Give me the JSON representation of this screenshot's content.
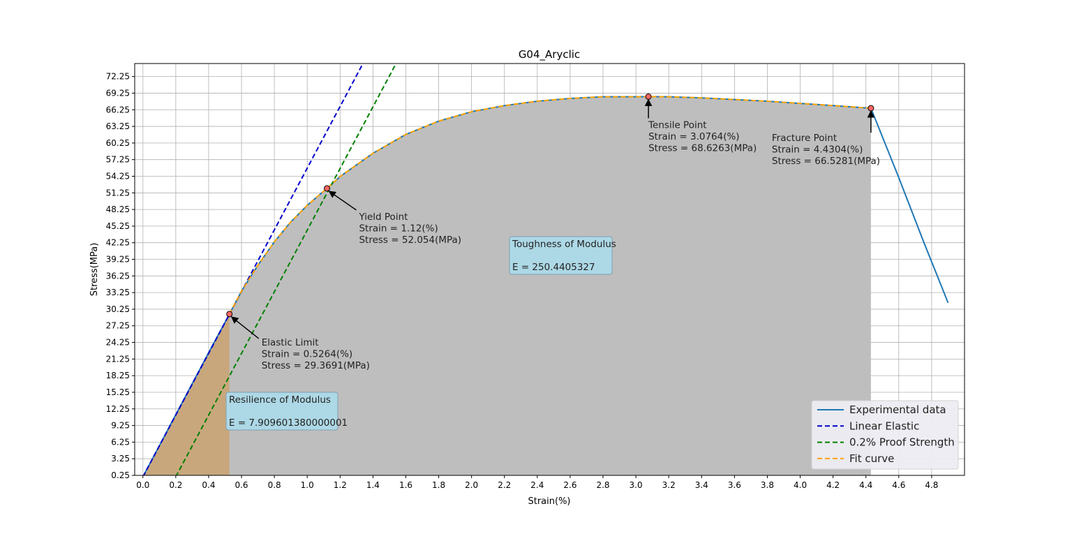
{
  "chart_data": {
    "type": "line",
    "title": "G04_Aryclic",
    "xlabel": "Strain(%)",
    "ylabel": "Stress(MPa)",
    "xlim": [
      -0.05,
      5.0
    ],
    "ylim": [
      0.25,
      74.6
    ],
    "x_ticks": [
      0.0,
      0.2,
      0.4,
      0.6,
      0.8,
      1.0,
      1.2,
      1.4,
      1.6,
      1.8,
      2.0,
      2.2,
      2.4,
      2.6,
      2.8,
      3.0,
      3.2,
      3.4,
      3.6,
      3.8,
      4.0,
      4.2,
      4.4,
      4.6,
      4.8
    ],
    "x_tick_labels": [
      "0.0",
      "0.2",
      "0.4",
      "0.6",
      "0.8",
      "1.0",
      "1.2",
      "1.4",
      "1.6",
      "1.8",
      "2.0",
      "2.2",
      "2.4",
      "2.6",
      "2.8",
      "3.0",
      "3.2",
      "3.4",
      "3.6",
      "3.8",
      "4.0",
      "4.2",
      "4.4",
      "4.6",
      "4.8"
    ],
    "y_ticks": [
      0.25,
      3.25,
      6.25,
      9.25,
      12.25,
      15.25,
      18.25,
      21.25,
      24.25,
      27.25,
      30.25,
      33.25,
      36.25,
      39.25,
      42.25,
      45.25,
      48.25,
      51.25,
      54.25,
      57.25,
      60.25,
      63.25,
      66.25,
      69.25,
      72.25
    ],
    "y_tick_labels": [
      "0.25",
      "3.25",
      "6.25",
      "9.25",
      "12.25",
      "15.25",
      "18.25",
      "21.25",
      "24.25",
      "27.25",
      "30.25",
      "33.25",
      "36.25",
      "39.25",
      "42.25",
      "45.25",
      "48.25",
      "51.25",
      "54.25",
      "57.25",
      "60.25",
      "63.25",
      "66.25",
      "69.25",
      "72.25"
    ],
    "grid": true,
    "legend_position": "lower-right",
    "series": [
      {
        "name": "Experimental data",
        "color": "#1f77b4",
        "style": "solid",
        "x": [
          0.0,
          0.1,
          0.2,
          0.3,
          0.4,
          0.5264,
          0.6,
          0.7,
          0.8,
          0.9,
          1.0,
          1.12,
          1.2,
          1.4,
          1.6,
          1.8,
          2.0,
          2.2,
          2.4,
          2.6,
          2.8,
          3.0,
          3.0764,
          3.2,
          3.4,
          3.6,
          3.8,
          4.0,
          4.2,
          4.4304,
          4.6,
          4.75,
          4.9
        ],
        "y": [
          0.0,
          5.6,
          11.2,
          16.8,
          22.4,
          29.3691,
          33.5,
          38.2,
          42.4,
          46.0,
          49.0,
          52.054,
          54.2,
          58.4,
          61.8,
          64.2,
          65.9,
          67.0,
          67.8,
          68.3,
          68.6,
          68.6,
          68.6263,
          68.6,
          68.4,
          68.1,
          67.8,
          67.4,
          67.0,
          66.5281,
          54.0,
          42.5,
          31.4
        ]
      },
      {
        "name": "Linear Elastic",
        "color": "#0000cc",
        "style": "dashed",
        "x": [
          0.0,
          1.4
        ],
        "y": [
          0.0,
          78.0
        ]
      },
      {
        "name": "0.2% Proof Strength",
        "color": "#008000",
        "style": "dashed",
        "x": [
          0.2,
          1.58
        ],
        "y": [
          0.0,
          76.8
        ]
      },
      {
        "name": "Fit curve",
        "color": "#ffa500",
        "style": "dashed",
        "x": [
          0.5264,
          0.6,
          0.7,
          0.8,
          0.9,
          1.0,
          1.12,
          1.2,
          1.4,
          1.6,
          1.8,
          2.0,
          2.2,
          2.4,
          2.6,
          2.8,
          3.0,
          3.0764,
          3.2,
          3.4,
          3.6,
          3.8,
          4.0,
          4.2,
          4.4304
        ],
        "y": [
          29.3691,
          33.5,
          38.2,
          42.4,
          46.0,
          49.0,
          52.054,
          54.2,
          58.4,
          61.8,
          64.2,
          65.9,
          67.0,
          67.8,
          68.3,
          68.6,
          68.6,
          68.6263,
          68.6,
          68.4,
          68.1,
          67.8,
          67.4,
          67.0,
          66.5281
        ]
      }
    ],
    "points": [
      {
        "name": "Elastic Limit",
        "strain": 0.5264,
        "stress": 29.3691,
        "label_lines": [
          "Elastic Limit",
          "Strain = 0.5264(%)",
          "Stress = 29.3691(MPa)"
        ]
      },
      {
        "name": "Yield Point",
        "strain": 1.12,
        "stress": 52.054,
        "label_lines": [
          "Yield Point",
          "Strain = 1.12(%)",
          "Stress = 52.054(MPa)"
        ]
      },
      {
        "name": "Tensile Point",
        "strain": 3.0764,
        "stress": 68.6263,
        "label_lines": [
          "Tensile Point",
          "Strain = 3.0764(%)",
          "Stress = 68.6263(MPa)"
        ]
      },
      {
        "name": "Fracture Point",
        "strain": 4.4304,
        "stress": 66.5281,
        "label_lines": [
          "Fracture Point",
          "Strain = 4.4304(%)",
          "Stress = 66.5281(MPa)"
        ]
      }
    ],
    "boxes": [
      {
        "name": "Resilience of Modulus",
        "lines": [
          "Resilience of Modulus",
          "",
          "E = 7.909601380000001"
        ]
      },
      {
        "name": "Toughness of Modulus",
        "lines": [
          "Toughness of Modulus",
          "",
          "E = 250.4405327"
        ]
      }
    ],
    "fills": {
      "resilience_color": "#c8a77c",
      "toughness_color": "#bebebe"
    }
  }
}
